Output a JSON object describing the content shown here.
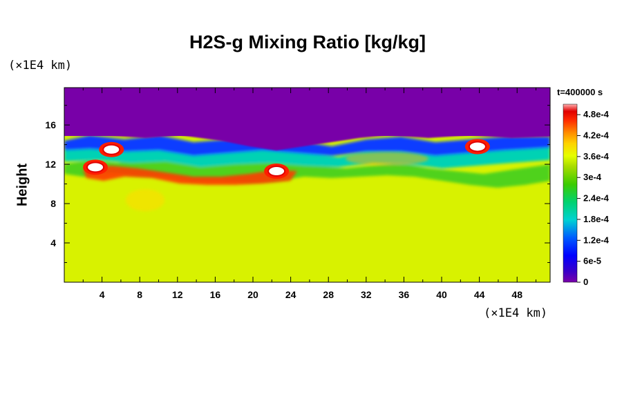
{
  "chart_data": {
    "type": "heatmap",
    "title": "H2S-g Mixing Ratio [kg/kg]",
    "ylabel": "Height",
    "x_unit": "(×1E4 km)",
    "y_unit": "(×1E4 km)",
    "time_label": "t=400000 s",
    "xlim": [
      0,
      51.5
    ],
    "ylim": [
      0,
      19.8
    ],
    "x_ticks": [
      4,
      8,
      12,
      16,
      20,
      24,
      28,
      32,
      36,
      40,
      44,
      48
    ],
    "y_ticks": [
      4,
      8,
      12,
      16
    ],
    "colorbar": {
      "min": 0,
      "max": 0.00051,
      "ticks": [
        {
          "value": 0,
          "label": "0"
        },
        {
          "value": 6e-05,
          "label": "6e-5"
        },
        {
          "value": 0.00012,
          "label": "1.2e-4"
        },
        {
          "value": 0.00018,
          "label": "1.8e-4"
        },
        {
          "value": 0.00024,
          "label": "2.4e-4"
        },
        {
          "value": 0.0003,
          "label": "3e-4"
        },
        {
          "value": 0.00036,
          "label": "3.6e-4"
        },
        {
          "value": 0.00042,
          "label": "4.2e-4"
        },
        {
          "value": 0.00048,
          "label": "4.8e-4"
        }
      ]
    },
    "field_description": {
      "lower_value": 0.00035,
      "upper_value": 0,
      "transition_height_range": [
        9.5,
        15
      ],
      "hot_spots": [
        {
          "x": 22.5,
          "y": 11.3,
          "value": 0.00051
        },
        {
          "x": 43.8,
          "y": 13.8,
          "value": 0.00051
        },
        {
          "x": 3.3,
          "y": 11.7,
          "value": 0.00051
        },
        {
          "x": 5,
          "y": 13.5,
          "value": 0.00051
        }
      ]
    }
  }
}
